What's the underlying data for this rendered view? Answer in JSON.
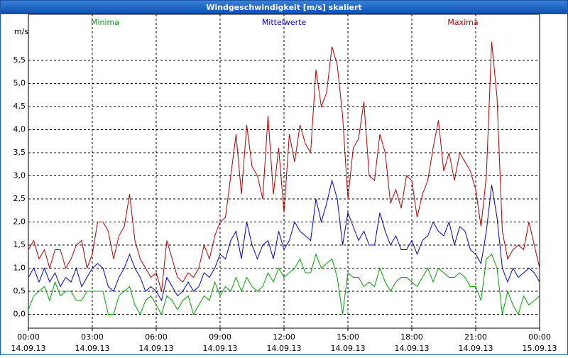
{
  "chart_data": {
    "type": "line",
    "title": "Windgeschwindigkeit [m/s] skaliert",
    "y_label": "m/s",
    "x": [
      0,
      0.25,
      0.5,
      0.75,
      1,
      1.25,
      1.5,
      1.75,
      2,
      2.25,
      2.5,
      2.75,
      3,
      3.25,
      3.5,
      3.75,
      4,
      4.25,
      4.5,
      4.75,
      5,
      5.25,
      5.5,
      5.75,
      6,
      6.25,
      6.5,
      6.75,
      7,
      7.25,
      7.5,
      7.75,
      8,
      8.25,
      8.5,
      8.75,
      9,
      9.25,
      9.5,
      9.75,
      10,
      10.25,
      10.5,
      10.75,
      11,
      11.25,
      11.5,
      11.75,
      12,
      12.25,
      12.5,
      12.75,
      13,
      13.25,
      13.5,
      13.75,
      14,
      14.25,
      14.5,
      14.75,
      15,
      15.25,
      15.5,
      15.75,
      16,
      16.25,
      16.5,
      16.75,
      17,
      17.25,
      17.5,
      17.75,
      18,
      18.25,
      18.5,
      18.75,
      19,
      19.25,
      19.5,
      19.75,
      20,
      20.25,
      20.5,
      20.75,
      21,
      21.25,
      21.5,
      21.75,
      22,
      22.25,
      22.5,
      22.75,
      23,
      23.25,
      23.5,
      23.75,
      24
    ],
    "series": [
      {
        "name": "Minima",
        "color": "#00a000",
        "values": [
          0.1,
          0.4,
          0.5,
          0.6,
          0.3,
          0.7,
          0.4,
          0.5,
          0.5,
          0.3,
          0.3,
          0.5,
          0.5,
          0.5,
          0.5,
          0.0,
          0.0,
          0.4,
          0.5,
          0.6,
          0.2,
          0.0,
          0.3,
          0.4,
          0.2,
          0.0,
          0.4,
          0.3,
          0.1,
          0.3,
          0.4,
          0.0,
          0.2,
          0.4,
          0.3,
          0.7,
          0.4,
          0.6,
          0.5,
          0.8,
          0.5,
          0.8,
          0.6,
          0.5,
          0.6,
          0.9,
          0.7,
          1.0,
          0.8,
          0.9,
          1.0,
          1.2,
          0.9,
          0.9,
          1.3,
          1.0,
          1.1,
          1.2,
          0.8,
          0.0,
          0.9,
          0.8,
          0.8,
          0.6,
          0.7,
          0.6,
          1.0,
          0.7,
          0.5,
          0.7,
          0.8,
          0.8,
          0.7,
          0.6,
          0.8,
          1.0,
          0.7,
          1.0,
          0.9,
          0.8,
          0.8,
          0.9,
          0.8,
          0.6,
          0.6,
          0.3,
          1.2,
          1.3,
          1.0,
          0.0,
          0.5,
          0.2,
          0.0,
          0.4,
          0.2,
          0.3,
          0.4
        ]
      },
      {
        "name": "Mittelwerte",
        "color": "#0000c0",
        "values": [
          0.8,
          1.0,
          0.7,
          1.0,
          0.7,
          0.9,
          0.6,
          0.8,
          0.7,
          1.0,
          0.6,
          0.8,
          1.0,
          1.1,
          1.0,
          0.6,
          0.5,
          0.8,
          1.0,
          1.3,
          1.0,
          0.8,
          0.5,
          0.6,
          0.5,
          0.3,
          0.8,
          0.6,
          0.4,
          0.5,
          0.7,
          0.5,
          0.6,
          0.9,
          0.8,
          1.0,
          1.3,
          1.2,
          1.6,
          1.8,
          1.2,
          2.0,
          1.5,
          1.2,
          1.5,
          1.6,
          1.2,
          1.8,
          1.4,
          1.6,
          2.0,
          1.8,
          1.7,
          1.6,
          2.5,
          2.0,
          2.4,
          2.9,
          2.5,
          1.5,
          2.2,
          1.9,
          1.6,
          1.8,
          1.5,
          1.5,
          2.2,
          1.8,
          1.5,
          1.7,
          1.4,
          1.4,
          1.6,
          1.3,
          1.6,
          1.7,
          2.0,
          1.8,
          1.7,
          2.0,
          1.5,
          1.9,
          1.8,
          1.4,
          1.3,
          1.1,
          1.8,
          2.8,
          2.1,
          1.0,
          0.7,
          1.0,
          0.8,
          0.9,
          1.0,
          0.9,
          0.7
        ]
      },
      {
        "name": "Maxima",
        "color": "#b00000",
        "values": [
          1.4,
          1.6,
          1.2,
          1.4,
          1.0,
          1.4,
          1.4,
          1.0,
          1.2,
          1.5,
          1.6,
          1.0,
          1.3,
          2.0,
          2.0,
          1.8,
          1.2,
          1.7,
          1.9,
          2.6,
          1.6,
          1.2,
          1.0,
          0.8,
          0.9,
          0.5,
          1.6,
          1.2,
          0.8,
          0.7,
          0.9,
          0.8,
          1.0,
          1.5,
          1.2,
          1.7,
          2.0,
          2.1,
          3.0,
          3.9,
          2.6,
          4.1,
          3.2,
          3.0,
          2.5,
          4.3,
          2.6,
          3.6,
          2.2,
          3.9,
          3.3,
          4.1,
          3.7,
          3.5,
          5.3,
          4.5,
          4.8,
          5.8,
          5.4,
          4.3,
          2.5,
          3.6,
          3.8,
          4.6,
          3.0,
          2.9,
          3.9,
          3.5,
          2.4,
          2.7,
          2.3,
          3.0,
          2.9,
          2.1,
          2.6,
          2.9,
          3.6,
          4.2,
          3.1,
          3.5,
          2.9,
          3.5,
          3.3,
          3.1,
          2.7,
          1.9,
          3.0,
          5.9,
          4.7,
          1.8,
          1.2,
          1.4,
          1.5,
          1.4,
          2.0,
          1.5,
          1.0
        ]
      }
    ],
    "xlim": [
      0,
      24
    ],
    "xticks": [
      {
        "value": 0,
        "label": "00:00"
      },
      {
        "value": 3,
        "label": "03:00"
      },
      {
        "value": 6,
        "label": "06:00"
      },
      {
        "value": 9,
        "label": "09:00"
      },
      {
        "value": 12,
        "label": "12:00"
      },
      {
        "value": 15,
        "label": "15:00"
      },
      {
        "value": 18,
        "label": "18:00"
      },
      {
        "value": 21,
        "label": "21:00"
      },
      {
        "value": 24,
        "label": "00:00"
      }
    ],
    "xtick_dates": [
      "14.09.13",
      "14.09.13",
      "14.09.13",
      "14.09.13",
      "14.09.13",
      "14.09.13",
      "14.09.13",
      "14.09.13",
      "15.09.13"
    ],
    "ylim": [
      -0.3,
      6.5
    ],
    "yticks": [
      {
        "value": 0,
        "label": "0,0"
      },
      {
        "value": 0.5,
        "label": "0,5"
      },
      {
        "value": 1,
        "label": "1,0"
      },
      {
        "value": 1.5,
        "label": "1,5"
      },
      {
        "value": 2,
        "label": "2,0"
      },
      {
        "value": 2.5,
        "label": "2,5"
      },
      {
        "value": 3,
        "label": "3,0"
      },
      {
        "value": 3.5,
        "label": "3,5"
      },
      {
        "value": 4,
        "label": "4,0"
      },
      {
        "value": 4.5,
        "label": "4,5"
      },
      {
        "value": 5,
        "label": "5,0"
      },
      {
        "value": 5.5,
        "label": "5,5"
      }
    ],
    "grid": true
  }
}
